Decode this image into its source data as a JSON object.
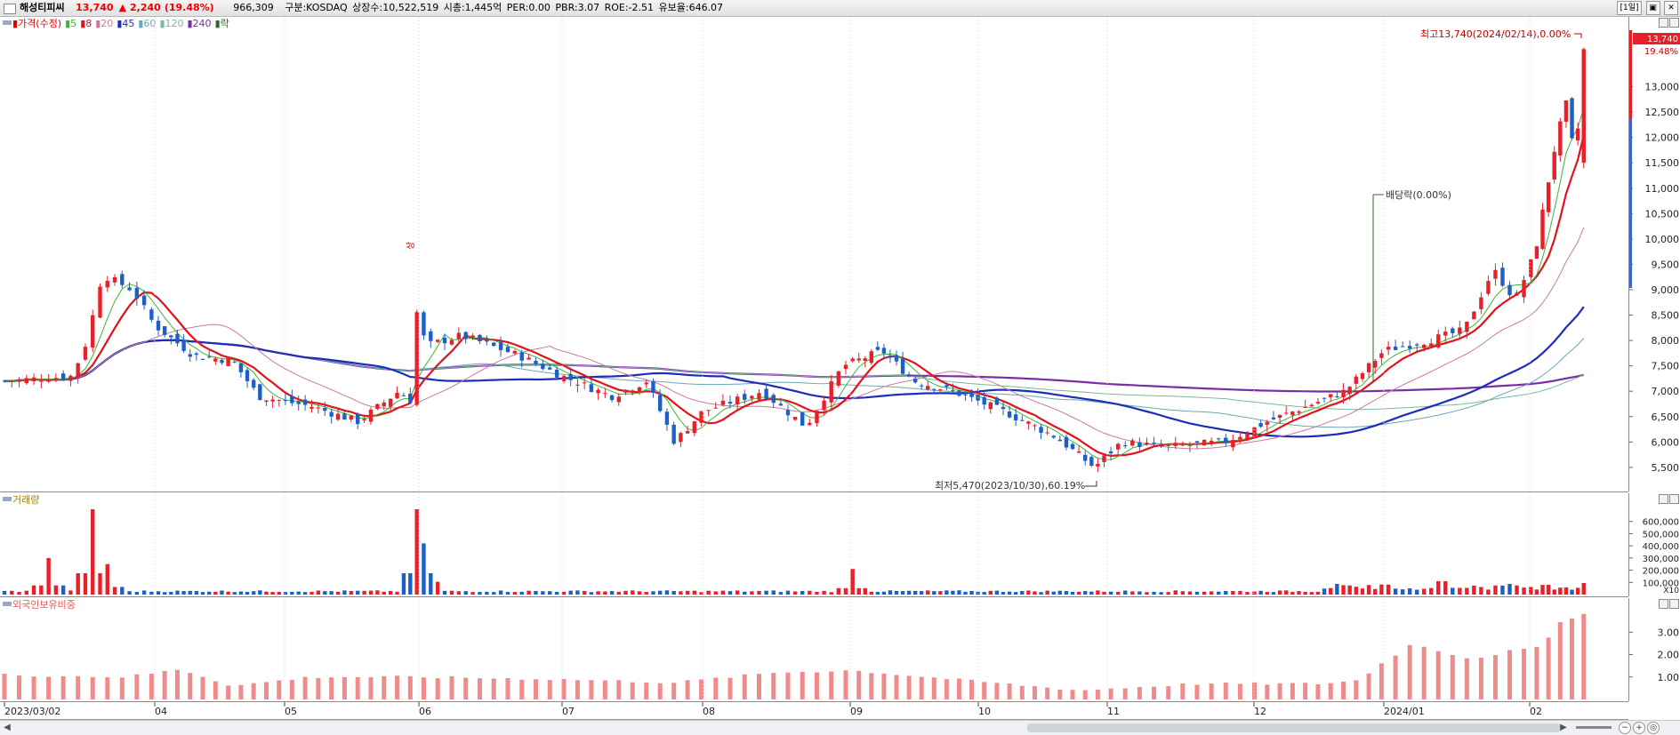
{
  "header": {
    "stock_name": "해성티피씨",
    "price": "13,740",
    "change_arrow": "▲",
    "change": "2,240",
    "change_pct": "(19.48%)",
    "volume": "966,309",
    "market": "구분:KOSDAQ",
    "shares": "상장수:10,522,519",
    "market_cap": "시총:1,445억",
    "per": "PER:0.00",
    "pbr": "PBR:3.07",
    "roe": "ROE:-2.51",
    "retention": "유보율:646.07",
    "period": "[1일]"
  },
  "colors": {
    "up": "#e8202a",
    "down": "#1c5fc7",
    "ma5": "#3cb43c",
    "ma20": "#c77aa0",
    "ma60": "#6aa7b6",
    "ma120": "#7ab89a",
    "ma240": "#7a2ea6",
    "ma8": "#e0141a",
    "ma45": "#1d2fb6",
    "foreign": "#f08b8b",
    "annotation": "#2a6a2a"
  },
  "price_panel": {
    "legend": [
      {
        "text": "가격(수정)",
        "color": "#e00000"
      },
      {
        "text": "5",
        "color": "#3cb43c"
      },
      {
        "text": "8",
        "color": "#e0141a"
      },
      {
        "text": "20",
        "color": "#c77aa0"
      },
      {
        "text": "45",
        "color": "#1d2fb6"
      },
      {
        "text": "60",
        "color": "#6aa7b6"
      },
      {
        "text": "120",
        "color": "#7ab89a"
      },
      {
        "text": "240",
        "color": "#7a2ea6"
      },
      {
        "text": "락",
        "color": "#2a6a2a"
      }
    ],
    "price_tag": "13,740",
    "pct_tag": "19.48%",
    "high_note": "최고13,740(2024/02/14),0.00%",
    "low_note": "최저5,470(2023/10/30),60.19%",
    "dividend_note": "배당락(0.00%)",
    "event_mark": "상"
  },
  "volume_panel": {
    "label": "거래량",
    "ticks": [
      "600,000",
      "500,000",
      "400,000",
      "300,000",
      "200,000",
      "100,000"
    ],
    "unit": "X10"
  },
  "foreign_panel": {
    "label": "외국인보유비중",
    "ticks": [
      "3.00",
      "2.00",
      "1.00"
    ]
  },
  "x_axis": {
    "labels": [
      "2023/03/02",
      "04",
      "05",
      "06",
      "07",
      "08",
      "09",
      "10",
      "11",
      "12",
      "2024/01",
      "02"
    ]
  },
  "scrollbar": {
    "left": "◀",
    "right": "▶"
  },
  "chart_data": [
    {
      "type": "line",
      "title": "",
      "note": "Daily candlestick price chart (adjusted), values approximated from the axis",
      "y_ticks": [
        13000,
        12500,
        12000,
        11500,
        11000,
        10500,
        10000,
        9500,
        9000,
        8500,
        8000,
        7500,
        7000,
        6500,
        6000,
        5500
      ],
      "ylim": [
        5200,
        14200
      ],
      "month_labels": [
        "2023/03/02",
        "04",
        "05",
        "06",
        "07",
        "08",
        "09",
        "10",
        "11",
        "12",
        "2024/01",
        "02"
      ],
      "close_keypoints": [
        {
          "month_pos": 0.0,
          "close": 7200
        },
        {
          "month_pos": 0.45,
          "close": 7300
        },
        {
          "month_pos": 0.55,
          "close": 8000
        },
        {
          "month_pos": 0.65,
          "close": 9300
        },
        {
          "month_pos": 0.85,
          "close": 9000
        },
        {
          "month_pos": 1.0,
          "close": 8300
        },
        {
          "month_pos": 1.3,
          "close": 7700
        },
        {
          "month_pos": 1.6,
          "close": 7600
        },
        {
          "month_pos": 1.8,
          "close": 6900
        },
        {
          "month_pos": 2.2,
          "close": 6700
        },
        {
          "month_pos": 2.55,
          "close": 6400
        },
        {
          "month_pos": 2.85,
          "close": 7000
        },
        {
          "month_pos": 2.95,
          "close": 6800
        },
        {
          "month_pos": 2.98,
          "close": 8600
        },
        {
          "month_pos": 3.05,
          "close": 7900
        },
        {
          "month_pos": 3.3,
          "close": 8100
        },
        {
          "month_pos": 3.7,
          "close": 7700
        },
        {
          "month_pos": 4.0,
          "close": 7300
        },
        {
          "month_pos": 4.35,
          "close": 6900
        },
        {
          "month_pos": 4.6,
          "close": 7200
        },
        {
          "month_pos": 4.8,
          "close": 6000
        },
        {
          "month_pos": 5.0,
          "close": 6600
        },
        {
          "month_pos": 5.4,
          "close": 7000
        },
        {
          "month_pos": 5.7,
          "close": 6300
        },
        {
          "month_pos": 5.95,
          "close": 7500
        },
        {
          "month_pos": 6.25,
          "close": 7800
        },
        {
          "month_pos": 6.5,
          "close": 7200
        },
        {
          "month_pos": 6.8,
          "close": 7000
        },
        {
          "month_pos": 7.2,
          "close": 6600
        },
        {
          "month_pos": 7.6,
          "close": 6100
        },
        {
          "month_pos": 7.9,
          "close": 5500
        },
        {
          "month_pos": 8.1,
          "close": 6000
        },
        {
          "month_pos": 8.4,
          "close": 5900
        },
        {
          "month_pos": 8.8,
          "close": 6000
        },
        {
          "month_pos": 9.1,
          "close": 6400
        },
        {
          "month_pos": 9.4,
          "close": 6700
        },
        {
          "month_pos": 9.7,
          "close": 7000
        },
        {
          "month_pos": 10.0,
          "close": 7800
        },
        {
          "month_pos": 10.3,
          "close": 8000
        },
        {
          "month_pos": 10.55,
          "close": 8200
        },
        {
          "month_pos": 10.75,
          "close": 9400
        },
        {
          "month_pos": 10.9,
          "close": 8800
        },
        {
          "month_pos": 11.05,
          "close": 9800
        },
        {
          "month_pos": 11.2,
          "close": 11700
        },
        {
          "month_pos": 11.3,
          "close": 12700
        },
        {
          "month_pos": 11.38,
          "close": 11500
        },
        {
          "month_pos": 11.45,
          "close": 13740
        }
      ],
      "high": {
        "value": 13740,
        "date": "2024/02/14"
      },
      "low": {
        "value": 5470,
        "date": "2023/10/30"
      },
      "last_close": 13740,
      "change": 2240,
      "change_pct": 19.48
    },
    {
      "type": "bar",
      "title": "",
      "note": "Daily volume, shown in units of X10",
      "y_ticks": [
        100000,
        200000,
        300000,
        400000,
        500000,
        600000
      ],
      "unit": "X10",
      "peaks": [
        {
          "month_pos": 0.28,
          "value": 300000
        },
        {
          "month_pos": 0.6,
          "value": 700000
        },
        {
          "month_pos": 0.7,
          "value": 250000
        },
        {
          "month_pos": 2.97,
          "value": 700000
        },
        {
          "month_pos": 3.02,
          "value": 420000
        },
        {
          "month_pos": 6.0,
          "value": 210000
        },
        {
          "month_pos": 10.4,
          "value": 110000
        },
        {
          "month_pos": 11.45,
          "value": 95000
        }
      ],
      "baseline": 20000
    },
    {
      "type": "bar",
      "title": "",
      "note": "Foreign ownership ratio (%)",
      "y_ticks": [
        1.0,
        2.0,
        3.0
      ],
      "ylim": [
        0,
        4.2
      ],
      "keypoints": [
        {
          "month_pos": 0.0,
          "value": 1.1
        },
        {
          "month_pos": 0.8,
          "value": 1.0
        },
        {
          "month_pos": 1.2,
          "value": 1.35
        },
        {
          "month_pos": 1.6,
          "value": 0.6
        },
        {
          "month_pos": 2.2,
          "value": 1.0
        },
        {
          "month_pos": 3.0,
          "value": 1.0
        },
        {
          "month_pos": 4.0,
          "value": 0.9
        },
        {
          "month_pos": 4.8,
          "value": 0.75
        },
        {
          "month_pos": 5.5,
          "value": 1.2
        },
        {
          "month_pos": 6.0,
          "value": 1.3
        },
        {
          "month_pos": 6.8,
          "value": 0.9
        },
        {
          "month_pos": 7.8,
          "value": 0.4
        },
        {
          "month_pos": 8.6,
          "value": 0.7
        },
        {
          "month_pos": 9.5,
          "value": 0.7
        },
        {
          "month_pos": 9.8,
          "value": 0.85
        },
        {
          "month_pos": 10.2,
          "value": 2.5
        },
        {
          "month_pos": 10.6,
          "value": 1.8
        },
        {
          "month_pos": 10.9,
          "value": 2.2
        },
        {
          "month_pos": 11.1,
          "value": 2.3
        },
        {
          "month_pos": 11.25,
          "value": 3.5
        },
        {
          "month_pos": 11.45,
          "value": 3.8
        }
      ]
    }
  ]
}
